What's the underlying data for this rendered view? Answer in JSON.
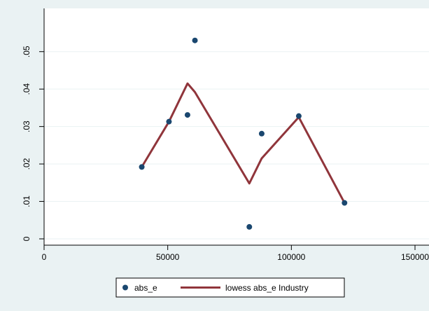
{
  "chart_data": {
    "type": "scatter",
    "title": "",
    "xlabel": "",
    "ylabel": "",
    "xlim": [
      0,
      150000
    ],
    "ylim": [
      0,
      0.055
    ],
    "x_ticks": [
      0,
      50000,
      100000,
      150000
    ],
    "x_tick_labels": [
      "0",
      "50000",
      "100000",
      "150000"
    ],
    "y_ticks": [
      0,
      0.01,
      0.02,
      0.03,
      0.04,
      0.05
    ],
    "y_tick_labels": [
      "0",
      ".01",
      ".02",
      ".03",
      ".04",
      ".05"
    ],
    "grid": "horizontal",
    "legend_position": "bottom",
    "series": [
      {
        "name": "abs_e",
        "kind": "scatter",
        "color": "#1a476f",
        "points": [
          {
            "x": 39500,
            "y": 0.0192
          },
          {
            "x": 50500,
            "y": 0.0313
          },
          {
            "x": 58000,
            "y": 0.0331
          },
          {
            "x": 61000,
            "y": 0.053
          },
          {
            "x": 83000,
            "y": 0.0032
          },
          {
            "x": 88000,
            "y": 0.0281
          },
          {
            "x": 103000,
            "y": 0.0328
          },
          {
            "x": 121500,
            "y": 0.0096
          }
        ]
      },
      {
        "name": "lowess abs_e Industry",
        "kind": "line",
        "color": "#90353b",
        "points": [
          {
            "x": 39500,
            "y": 0.0192
          },
          {
            "x": 50500,
            "y": 0.0313
          },
          {
            "x": 58000,
            "y": 0.0415
          },
          {
            "x": 61000,
            "y": 0.0392
          },
          {
            "x": 83000,
            "y": 0.0148
          },
          {
            "x": 88000,
            "y": 0.0215
          },
          {
            "x": 103000,
            "y": 0.0325
          },
          {
            "x": 121500,
            "y": 0.0096
          }
        ]
      }
    ]
  }
}
